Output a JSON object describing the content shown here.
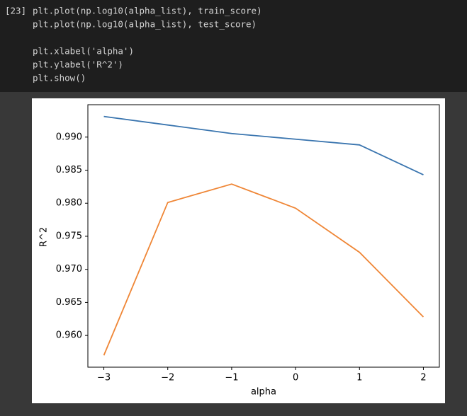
{
  "cell": {
    "prompt": "[23]",
    "code": [
      "plt.plot(np.log10(alpha_list), train_score)",
      "plt.plot(np.log10(alpha_list), test_score)",
      "plt.xlabel('alpha')",
      "plt.ylabel('R^2')",
      "plt.show()"
    ]
  },
  "chart_data": {
    "type": "line",
    "xlabel": "alpha",
    "ylabel": "R^2",
    "x": [
      -3,
      -2,
      -1,
      0,
      1,
      2
    ],
    "series": [
      {
        "name": "train_score",
        "color": "#3a75af",
        "values": [
          0.99312,
          0.99183,
          0.99054,
          0.98968,
          0.98882,
          0.9843
        ]
      },
      {
        "name": "test_score",
        "color": "#ef8636",
        "values": [
          0.95699,
          0.98011,
          0.9829,
          0.97925,
          0.97258,
          0.9628
        ]
      }
    ],
    "xlim": [
      -3.25,
      2.25
    ],
    "xticks": [
      {
        "value": -3,
        "label": "−3"
      },
      {
        "value": -2,
        "label": "−2"
      },
      {
        "value": -1,
        "label": "−1"
      },
      0,
      1,
      2
    ],
    "ylim": [
      0.9552,
      0.9949
    ],
    "yticks": [
      {
        "value": 0.96,
        "label": "0.960"
      },
      0.965,
      {
        "value": 0.97,
        "label": "0.970"
      },
      0.975,
      {
        "value": 0.98,
        "label": "0.980"
      },
      0.985,
      {
        "value": 0.99,
        "label": "0.990"
      }
    ],
    "grid": false
  }
}
